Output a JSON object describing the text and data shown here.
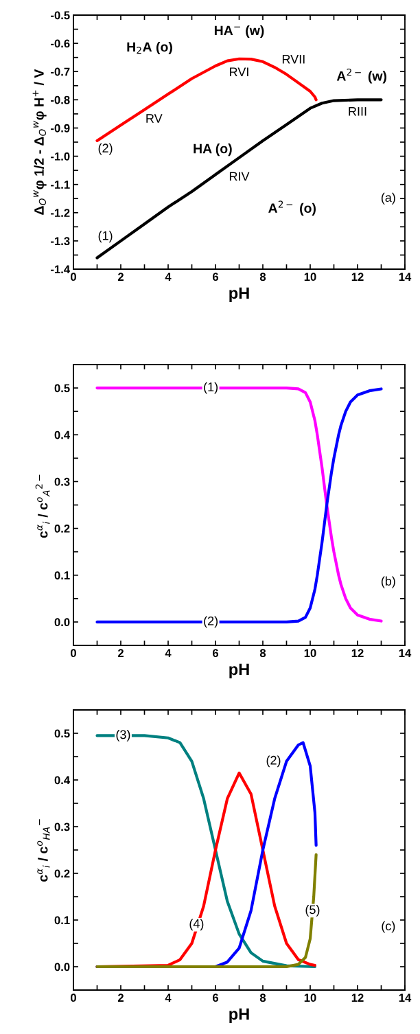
{
  "chart_data": [
    {
      "type": "line",
      "xlabel": "pH",
      "ylabel": "Δ$_{O}$$^{w}$φ 1/2 - Δ$_{O}$$^{w}$φ H$^{+}$ / V",
      "xlim": [
        0,
        14
      ],
      "ylim": [
        -1.4,
        -0.5
      ],
      "xticks": [
        0,
        {
          "value": 1,
          "label": null
        },
        2,
        {
          "value": 3,
          "label": null
        },
        4,
        {
          "value": 5,
          "label": null
        },
        6,
        {
          "value": 7,
          "label": null
        },
        8,
        {
          "value": 9,
          "label": null
        },
        10,
        {
          "value": 11,
          "label": null
        },
        12,
        {
          "value": 13,
          "label": null
        },
        14
      ],
      "yticks": [
        {
          "value": -1.4,
          "label": "-1.4"
        },
        {
          "value": -1.35,
          "label": null
        },
        {
          "value": -1.3,
          "label": "-1.3"
        },
        {
          "value": -1.25,
          "label": null
        },
        {
          "value": -1.2,
          "label": "-1.2"
        },
        {
          "value": -1.15,
          "label": null
        },
        {
          "value": -1.1,
          "label": "-1.1"
        },
        {
          "value": -1.05,
          "label": null
        },
        {
          "value": -1.0,
          "label": "-1.0"
        },
        {
          "value": -0.95,
          "label": null
        },
        {
          "value": -0.9,
          "label": "-0.9"
        },
        {
          "value": -0.85,
          "label": null
        },
        {
          "value": -0.8,
          "label": "-0.8"
        },
        {
          "value": -0.75,
          "label": null
        },
        {
          "value": -0.7,
          "label": "-0.7"
        },
        {
          "value": -0.65,
          "label": null
        },
        {
          "value": -0.6,
          "label": "-0.6"
        },
        {
          "value": -0.55,
          "label": null
        },
        {
          "value": -0.5,
          "label": "-0.5"
        }
      ],
      "grid": false,
      "marker": "none",
      "line_style": "solid",
      "series": [
        {
          "color": "#000000",
          "x": [
            1,
            2,
            3,
            4,
            5,
            6,
            7,
            8,
            9,
            10,
            10.5,
            11,
            12,
            13
          ],
          "values": [
            -1.36,
            -1.3,
            -1.24,
            -1.18,
            -1.125,
            -1.065,
            -1.005,
            -0.945,
            -0.888,
            -0.83,
            -0.812,
            -0.803,
            -0.8,
            -0.8
          ]
        },
        {
          "color": "#ff0000",
          "x": [
            1,
            2,
            3,
            4,
            5,
            6,
            6.5,
            7,
            7.5,
            8,
            8.5,
            9,
            9.5,
            10,
            10.2,
            10.25
          ],
          "values": [
            -0.945,
            -0.89,
            -0.835,
            -0.78,
            -0.725,
            -0.68,
            -0.662,
            -0.655,
            -0.656,
            -0.665,
            -0.685,
            -0.71,
            -0.74,
            -0.77,
            -0.79,
            -0.8
          ]
        }
      ],
      "annotations": [
        "H$_{2}$A (o)",
        "HA$^{−}$ (w)",
        "A$^{2−}$ (w)",
        "HA (o)",
        "A$^{2−}$ (o)",
        {
          "text": "RV",
          "x": 3.4,
          "y": -0.87
        },
        {
          "text": "RVI",
          "x": 7,
          "y": -0.705
        },
        {
          "text": "RVII",
          "x": 9.3,
          "y": -0.66
        },
        {
          "text": "RIII",
          "x": 12,
          "y": -0.845
        },
        {
          "text": "RIV",
          "x": 7,
          "y": -1.075
        },
        {
          "text": "(1)",
          "x": 1.35,
          "y": -1.285
        },
        {
          "text": "(2)",
          "x": 1.35,
          "y": -0.975
        },
        {
          "text": "(a)",
          "x": 13.3,
          "y": -1.15
        }
      ]
    },
    {
      "type": "line",
      "xlabel": "pH",
      "ylabel": "c$^{α}$$_{i}$ / c$^{o}$$_{A}$$^{2−}$",
      "xlim": [
        0,
        14
      ],
      "ylim": [
        -0.05,
        0.55
      ],
      "xticks": [
        0,
        {
          "value": 1,
          "label": null
        },
        2,
        {
          "value": 3,
          "label": null
        },
        4,
        {
          "value": 5,
          "label": null
        },
        6,
        {
          "value": 7,
          "label": null
        },
        8,
        {
          "value": 9,
          "label": null
        },
        10,
        {
          "value": 11,
          "label": null
        },
        12,
        {
          "value": 13,
          "label": null
        },
        14
      ],
      "yticks": [
        {
          "value": 0.0,
          "label": "0.0"
        },
        {
          "value": 0.05,
          "label": null
        },
        0.1,
        {
          "value": 0.15,
          "label": null
        },
        0.2,
        {
          "value": 0.25,
          "label": null
        },
        0.3,
        {
          "value": 0.35,
          "label": null
        },
        0.4,
        {
          "value": 0.45,
          "label": null
        },
        0.5
      ],
      "grid": false,
      "marker": "none",
      "line_style": "solid",
      "series": [
        {
          "color": "#ff00ff",
          "x": [
            1,
            5,
            9,
            9.5,
            9.8,
            10,
            10.2,
            10.3,
            10.5,
            10.7,
            10.9,
            11,
            11.2,
            11.3,
            11.5,
            11.7,
            12,
            12.5,
            13
          ],
          "values": [
            0.5,
            0.5,
            0.5,
            0.498,
            0.49,
            0.47,
            0.43,
            0.4,
            0.33,
            0.25,
            0.18,
            0.15,
            0.1,
            0.08,
            0.05,
            0.03,
            0.015,
            0.006,
            0.002
          ]
        },
        {
          "color": "#0000ff",
          "x": [
            1,
            5,
            9,
            9.5,
            9.8,
            10,
            10.2,
            10.3,
            10.5,
            10.7,
            10.9,
            11,
            11.2,
            11.3,
            11.5,
            11.7,
            12,
            12.5,
            13
          ],
          "values": [
            0,
            0,
            0,
            0.002,
            0.01,
            0.03,
            0.07,
            0.1,
            0.17,
            0.25,
            0.32,
            0.35,
            0.4,
            0.42,
            0.45,
            0.47,
            0.485,
            0.494,
            0.498
          ]
        }
      ],
      "annotations": [
        {
          "text": "(1)",
          "x": 5.8,
          "y": 0.5
        },
        {
          "text": "(2)",
          "x": 5.8,
          "y": 0.0
        },
        {
          "text": "(b)",
          "x": 13.3,
          "y": 0.085
        }
      ]
    },
    {
      "type": "line",
      "xlabel": "pH",
      "ylabel": "c$^{α}$$_{i}$ / c$^{o}$$_{HA}$$^{−}$",
      "xlim": [
        0,
        14
      ],
      "ylim": [
        -0.05,
        0.55
      ],
      "xticks": [
        0,
        {
          "value": 1,
          "label": null
        },
        2,
        {
          "value": 3,
          "label": null
        },
        4,
        {
          "value": 5,
          "label": null
        },
        6,
        {
          "value": 7,
          "label": null
        },
        8,
        {
          "value": 9,
          "label": null
        },
        10,
        {
          "value": 11,
          "label": null
        },
        12,
        {
          "value": 13,
          "label": null
        },
        14
      ],
      "yticks": [
        {
          "value": 0.0,
          "label": "0.0"
        },
        {
          "value": 0.05,
          "label": null
        },
        0.1,
        {
          "value": 0.15,
          "label": null
        },
        0.2,
        {
          "value": 0.25,
          "label": null
        },
        0.3,
        {
          "value": 0.35,
          "label": null
        },
        0.4,
        {
          "value": 0.45,
          "label": null
        },
        0.5
      ],
      "grid": false,
      "marker": "none",
      "line_style": "solid",
      "series": [
        {
          "color": "#008080",
          "x": [
            1,
            3,
            4,
            4.5,
            5,
            5.5,
            6,
            6.5,
            7,
            7.5,
            8,
            9,
            10.2
          ],
          "values": [
            0.495,
            0.495,
            0.49,
            0.48,
            0.44,
            0.36,
            0.25,
            0.14,
            0.07,
            0.03,
            0.012,
            0.002,
            0
          ]
        },
        {
          "color": "#ff0000",
          "x": [
            1,
            4,
            4.5,
            5,
            5.5,
            6,
            6.5,
            7,
            7.5,
            8,
            8.5,
            9,
            9.5,
            10,
            10.2
          ],
          "values": [
            0,
            0.003,
            0.015,
            0.05,
            0.13,
            0.25,
            0.36,
            0.415,
            0.37,
            0.25,
            0.13,
            0.05,
            0.015,
            0.005,
            0.003
          ]
        },
        {
          "color": "#0000ff",
          "x": [
            1,
            6,
            6.5,
            7,
            7.5,
            8,
            8.5,
            9,
            9.5,
            9.7,
            10,
            10.2,
            10.25
          ],
          "values": [
            0,
            0,
            0.01,
            0.04,
            0.12,
            0.25,
            0.36,
            0.44,
            0.475,
            0.48,
            0.43,
            0.33,
            0.26
          ]
        },
        {
          "color": "#808000",
          "x": [
            1,
            9,
            9.5,
            9.8,
            10,
            10.15,
            10.25
          ],
          "values": [
            0,
            0,
            0.005,
            0.02,
            0.06,
            0.15,
            0.24
          ]
        }
      ],
      "annotations": [
        {
          "text": "(3)",
          "x": 2.1,
          "y": 0.495
        },
        {
          "text": "(4)",
          "x": 5.2,
          "y": 0.09
        },
        {
          "text": "(2)",
          "x": 8.45,
          "y": 0.44
        },
        {
          "text": "(5)",
          "x": 10.1,
          "y": 0.12
        },
        {
          "text": "(c)",
          "x": 13.3,
          "y": 0.085
        }
      ]
    }
  ]
}
